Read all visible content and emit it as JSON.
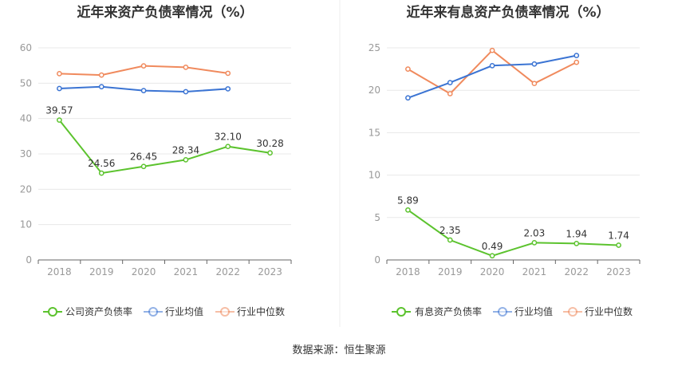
{
  "source_label": "数据来源：恒生聚源",
  "colors": {
    "company": "#5cc32e",
    "industry_avg": "#3b74d3",
    "industry_median": "#f08a5d"
  },
  "chart_data": [
    {
      "type": "line",
      "title": "近年来资产负债率情况（%）",
      "categories": [
        "2018",
        "2019",
        "2020",
        "2021",
        "2022",
        "2023"
      ],
      "ylim": [
        0,
        60
      ],
      "yticks": [
        "0",
        "10",
        "20",
        "30",
        "40",
        "50",
        "60"
      ],
      "grid": true,
      "legend_position": "bottom",
      "series": [
        {
          "name": "公司资产负债率",
          "color": "#5cc32e",
          "values": [
            39.57,
            24.56,
            26.45,
            28.34,
            32.1,
            30.28
          ],
          "labels": [
            "39.57",
            "24.56",
            "26.45",
            "28.34",
            "32.10",
            "30.28"
          ]
        },
        {
          "name": "行业均值",
          "color": "#3b74d3",
          "values": [
            48.5,
            49.0,
            47.9,
            47.6,
            48.4,
            null
          ],
          "labels": []
        },
        {
          "name": "行业中位数",
          "color": "#f08a5d",
          "values": [
            52.7,
            52.3,
            54.9,
            54.5,
            52.8,
            null
          ],
          "labels": []
        }
      ]
    },
    {
      "type": "line",
      "title": "近年来有息资产负债率情况（%）",
      "categories": [
        "2018",
        "2019",
        "2020",
        "2021",
        "2022",
        "2023"
      ],
      "ylim": [
        0,
        25
      ],
      "yticks": [
        "0",
        "5",
        "10",
        "15",
        "20",
        "25"
      ],
      "grid": true,
      "legend_position": "bottom",
      "series": [
        {
          "name": "有息资产负债率",
          "color": "#5cc32e",
          "values": [
            5.89,
            2.35,
            0.49,
            2.03,
            1.94,
            1.74
          ],
          "labels": [
            "5.89",
            "2.35",
            "0.49",
            "2.03",
            "1.94",
            "1.74"
          ]
        },
        {
          "name": "行业均值",
          "color": "#3b74d3",
          "values": [
            19.1,
            20.9,
            22.9,
            23.1,
            24.1,
            null
          ],
          "labels": []
        },
        {
          "name": "行业中位数",
          "color": "#f08a5d",
          "values": [
            22.5,
            19.6,
            24.7,
            20.8,
            23.3,
            null
          ],
          "labels": []
        }
      ]
    }
  ]
}
